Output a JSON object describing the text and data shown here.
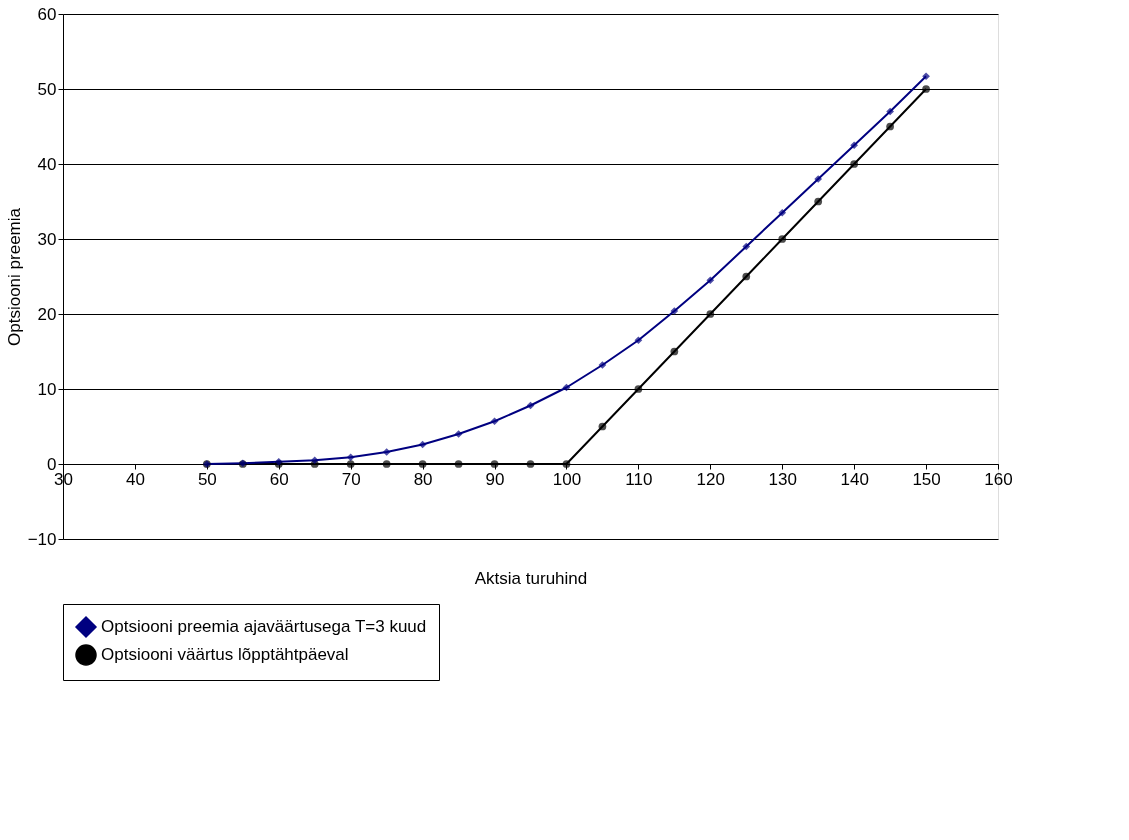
{
  "chart_data": {
    "type": "line",
    "xlabel": "Aktsia turuhind",
    "ylabel": "Optsiooni preemia",
    "x": [
      50,
      55,
      60,
      65,
      70,
      75,
      80,
      85,
      90,
      95,
      100,
      105,
      110,
      115,
      120,
      125,
      130,
      135,
      140,
      145,
      150
    ],
    "series": [
      {
        "name": "Optsiooni preemia ajaväärtusega T=3 kuud",
        "color": "#000080",
        "marker": "diamond",
        "values": [
          0,
          0.1,
          0.3,
          0.5,
          0.9,
          1.6,
          2.6,
          4,
          5.7,
          7.8,
          10.2,
          13.2,
          16.5,
          20.4,
          24.5,
          29,
          33.5,
          38,
          42.5,
          47,
          51.7
        ]
      },
      {
        "name": "Optsiooni väärtus lõpptähtpäeval",
        "color": "#000000",
        "marker": "circle",
        "values": [
          0,
          0,
          0,
          0,
          0,
          0,
          0,
          0,
          0,
          0,
          0,
          5,
          10,
          15,
          20,
          25,
          30,
          35,
          40,
          45,
          50
        ]
      }
    ],
    "xlim": [
      30,
      160
    ],
    "xticks": [
      30,
      40,
      50,
      60,
      70,
      80,
      90,
      100,
      110,
      120,
      130,
      140,
      150,
      160
    ],
    "ylim": [
      -10,
      60
    ],
    "yticks": [
      -10,
      0,
      10,
      20,
      30,
      40,
      50,
      60
    ],
    "grid": "y",
    "legend": "bottom",
    "line_style": "solid"
  }
}
